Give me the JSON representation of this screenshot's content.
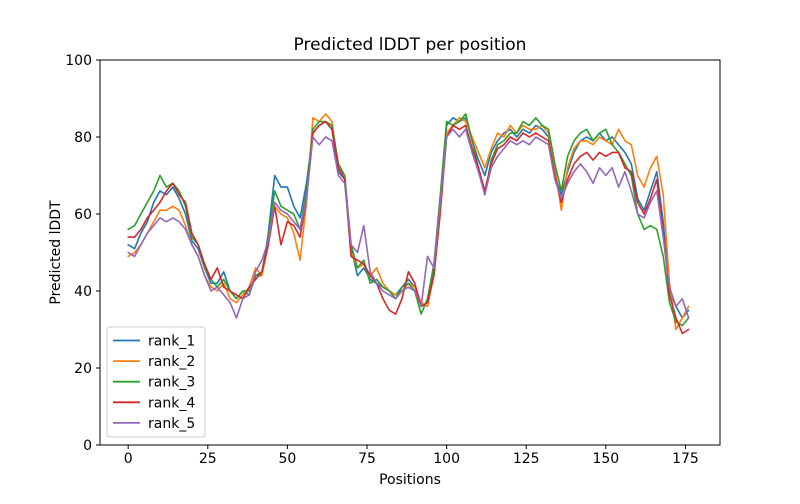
{
  "chart_data": {
    "type": "line",
    "title": "Predicted lDDT per position",
    "xlabel": "Positions",
    "ylabel": "Predicted lDDT",
    "xlim": [
      -8.85,
      185.85
    ],
    "ylim": [
      0,
      100
    ],
    "xticks": [
      0,
      25,
      50,
      75,
      100,
      125,
      150,
      175
    ],
    "yticks": [
      0,
      20,
      40,
      60,
      80,
      100
    ],
    "grid": false,
    "legend_position": "lower left",
    "line_width": 1.6,
    "x": [
      0,
      2,
      4,
      6,
      8,
      10,
      12,
      14,
      16,
      18,
      20,
      22,
      24,
      26,
      28,
      30,
      32,
      34,
      36,
      38,
      40,
      42,
      44,
      46,
      48,
      50,
      52,
      54,
      56,
      58,
      60,
      62,
      64,
      66,
      68,
      70,
      72,
      74,
      76,
      78,
      80,
      82,
      84,
      86,
      88,
      90,
      92,
      94,
      96,
      98,
      100,
      102,
      104,
      106,
      108,
      110,
      112,
      114,
      116,
      118,
      120,
      122,
      124,
      126,
      128,
      130,
      132,
      134,
      136,
      138,
      140,
      142,
      144,
      146,
      148,
      150,
      152,
      154,
      156,
      158,
      160,
      162,
      164,
      166,
      168,
      170,
      172,
      174,
      176
    ],
    "series": [
      {
        "name": "rank_1",
        "color": "#1f77b4",
        "values": [
          52,
          51,
          55,
          58,
          63,
          66,
          65,
          67,
          64,
          60,
          53,
          51,
          46,
          42,
          42,
          45,
          40,
          38,
          40,
          39,
          44,
          44,
          55,
          70,
          67,
          67,
          62,
          59,
          68,
          81,
          83,
          84,
          82,
          71,
          69,
          51,
          44,
          46,
          43,
          42,
          41,
          40,
          39,
          41,
          43,
          41,
          36,
          37,
          46,
          64,
          83,
          85,
          84,
          85,
          79,
          74,
          70,
          76,
          79,
          81,
          82,
          80,
          82,
          81,
          83,
          82,
          80,
          70,
          65,
          71,
          76,
          79,
          80,
          79,
          81,
          79,
          80,
          78,
          76,
          73,
          64,
          61,
          66,
          71,
          58,
          40,
          36,
          33,
          35
        ]
      },
      {
        "name": "rank_2",
        "color": "#ff7f0e",
        "values": [
          49,
          50,
          52,
          55,
          58,
          61,
          61,
          62,
          61,
          57,
          52,
          49,
          44,
          41,
          40,
          42,
          38,
          37,
          39,
          41,
          46,
          44,
          52,
          62,
          60,
          59,
          55,
          48,
          63,
          85,
          84,
          86,
          84,
          72,
          70,
          50,
          46,
          47,
          44,
          46,
          42,
          40,
          39,
          40,
          42,
          41,
          37,
          36,
          44,
          60,
          81,
          83,
          85,
          84,
          80,
          76,
          72,
          77,
          81,
          80,
          83,
          81,
          83,
          82,
          82,
          83,
          81,
          72,
          61,
          72,
          77,
          79,
          79,
          78,
          80,
          79,
          78,
          82,
          79,
          78,
          70,
          67,
          72,
          75,
          65,
          42,
          30,
          33,
          36
        ]
      },
      {
        "name": "rank_3",
        "color": "#2ca02c",
        "values": [
          56,
          57,
          60,
          63,
          66,
          70,
          67,
          68,
          66,
          62,
          54,
          52,
          46,
          43,
          41,
          43,
          40,
          38,
          40,
          40,
          44,
          45,
          54,
          66,
          62,
          61,
          60,
          56,
          66,
          82,
          84,
          84,
          83,
          73,
          70,
          52,
          46,
          48,
          42,
          43,
          41,
          40,
          38,
          41,
          42,
          40,
          34,
          38,
          47,
          65,
          84,
          83,
          84,
          86,
          79,
          72,
          65,
          74,
          78,
          79,
          81,
          81,
          84,
          83,
          85,
          83,
          82,
          73,
          66,
          75,
          79,
          81,
          82,
          79,
          81,
          82,
          78,
          76,
          73,
          70,
          60,
          56,
          57,
          56,
          49,
          37,
          32,
          31,
          33
        ]
      },
      {
        "name": "rank_4",
        "color": "#d62728",
        "values": [
          54,
          54,
          56,
          59,
          61,
          63,
          66,
          68,
          65,
          63,
          55,
          52,
          47,
          43,
          46,
          41,
          40,
          39,
          38,
          41,
          43,
          45,
          52,
          62,
          52,
          58,
          57,
          54,
          64,
          81,
          83,
          84,
          82,
          72,
          69,
          49,
          48,
          47,
          44,
          42,
          38,
          35,
          34,
          38,
          45,
          42,
          36,
          37,
          44,
          61,
          80,
          83,
          82,
          83,
          77,
          72,
          66,
          73,
          77,
          78,
          80,
          79,
          81,
          80,
          81,
          80,
          79,
          70,
          63,
          69,
          73,
          75,
          76,
          74,
          76,
          75,
          76,
          76,
          72,
          71,
          63,
          60,
          64,
          69,
          55,
          39,
          33,
          29,
          30
        ]
      },
      {
        "name": "rank_5",
        "color": "#9467bd",
        "values": [
          50,
          49,
          52,
          55,
          57,
          59,
          58,
          59,
          58,
          56,
          52,
          49,
          44,
          40,
          41,
          39,
          37,
          33,
          38,
          39,
          45,
          48,
          53,
          63,
          61,
          60,
          58,
          56,
          64,
          80,
          78,
          80,
          79,
          70,
          68,
          52,
          50,
          57,
          45,
          42,
          40,
          39,
          38,
          40,
          41,
          40,
          36,
          49,
          46,
          63,
          80,
          82,
          80,
          82,
          76,
          71,
          65,
          72,
          75,
          77,
          79,
          78,
          79,
          78,
          80,
          79,
          78,
          69,
          64,
          68,
          71,
          73,
          71,
          68,
          72,
          70,
          72,
          67,
          71,
          66,
          60,
          59,
          63,
          66,
          54,
          41,
          36,
          38,
          33
        ]
      }
    ],
    "axis_color": "#000000",
    "legend_frame_color": "#cccccc",
    "legend_bg_color": "#ffffff"
  }
}
